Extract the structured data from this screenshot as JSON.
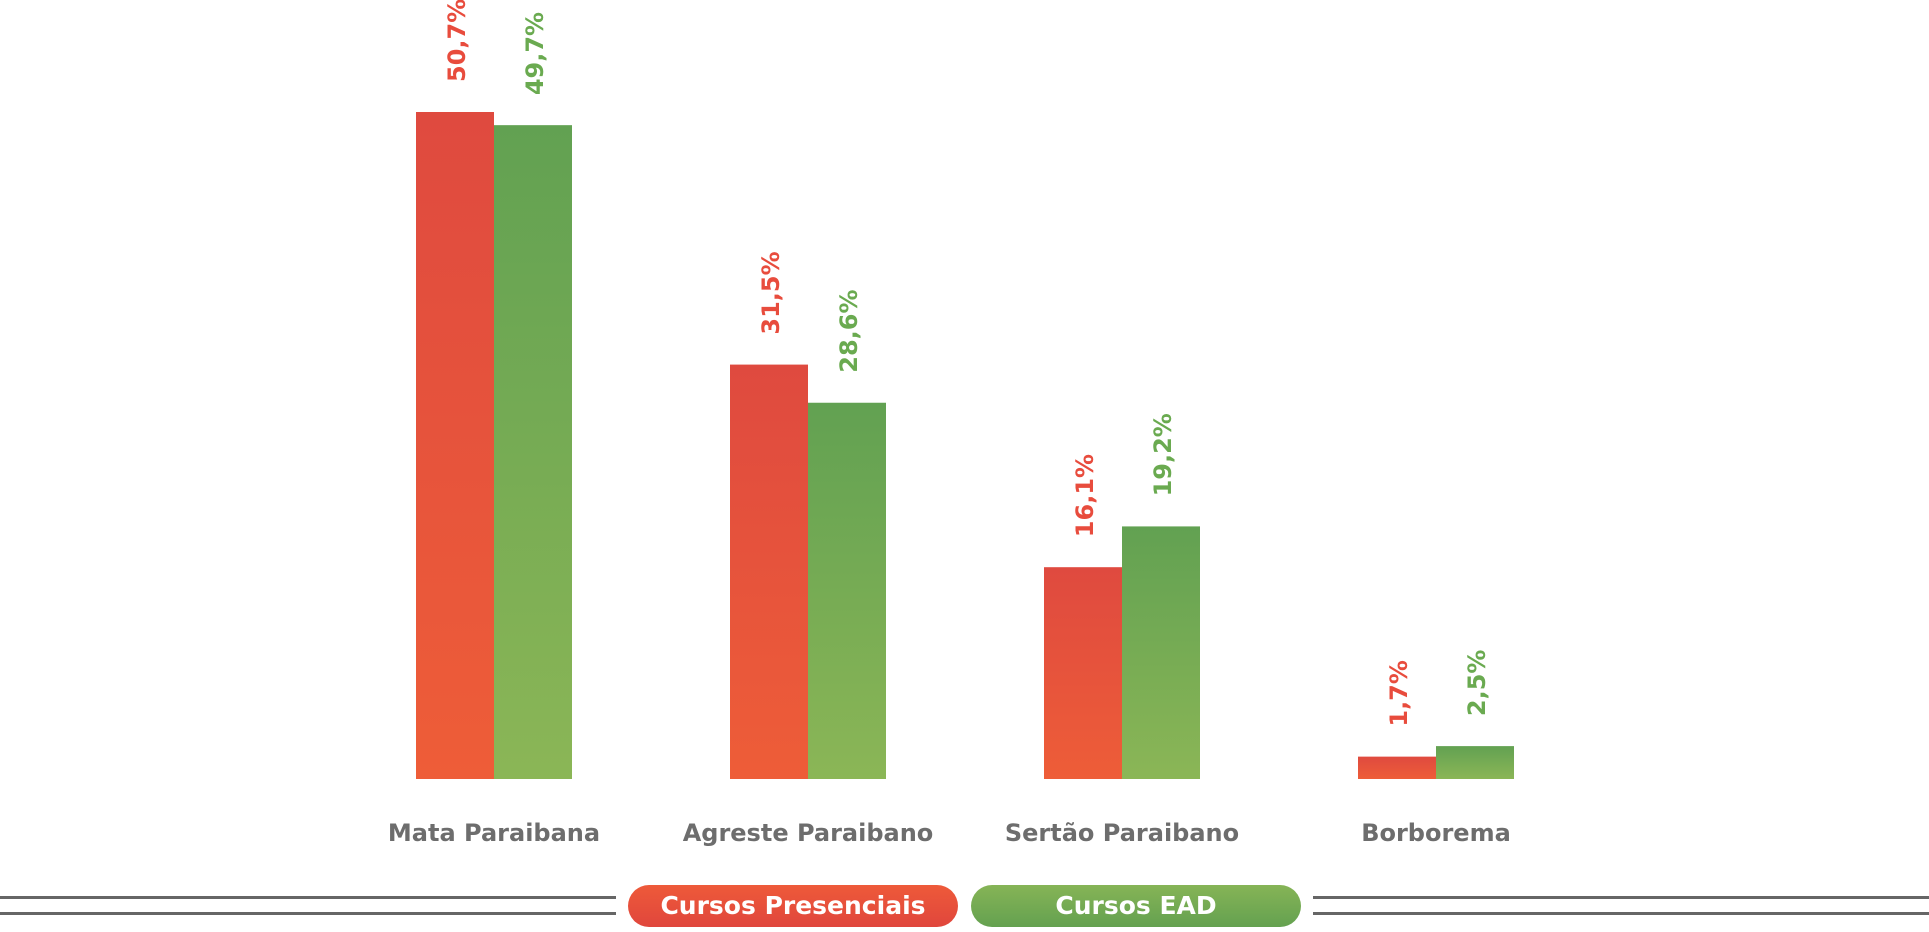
{
  "chart_data": {
    "type": "bar",
    "categories": [
      "Mata Paraibana",
      "Agreste Paraibano",
      "Sertão Paraibano",
      "Borborema"
    ],
    "series": [
      {
        "name": "Cursos Presenciais",
        "values": [
          50.7,
          31.5,
          16.1,
          1.7
        ],
        "labels": [
          "50,7%",
          "31,5%",
          "16,1%",
          "1,7%"
        ],
        "color": "#e84c3d",
        "gradient": [
          "#ee5d38",
          "#df4a3f"
        ]
      },
      {
        "name": "Cursos EAD",
        "values": [
          49.7,
          28.6,
          19.2,
          2.5
        ],
        "labels": [
          "49,7%",
          "28,6%",
          "19,2%",
          "2,5%"
        ],
        "color": "#6aaa50",
        "gradient": [
          "#8bb656",
          "#62a152"
        ]
      }
    ],
    "title": "",
    "xlabel": "",
    "ylabel": "",
    "ylim": [
      0,
      50.7
    ],
    "grid": false,
    "legend_position": "bottom-center"
  },
  "legend": {
    "presenciais": "Cursos Presenciais",
    "ead": "Cursos EAD"
  },
  "colors": {
    "category_label": "#6d6d6d",
    "legend_line": "#666666"
  }
}
